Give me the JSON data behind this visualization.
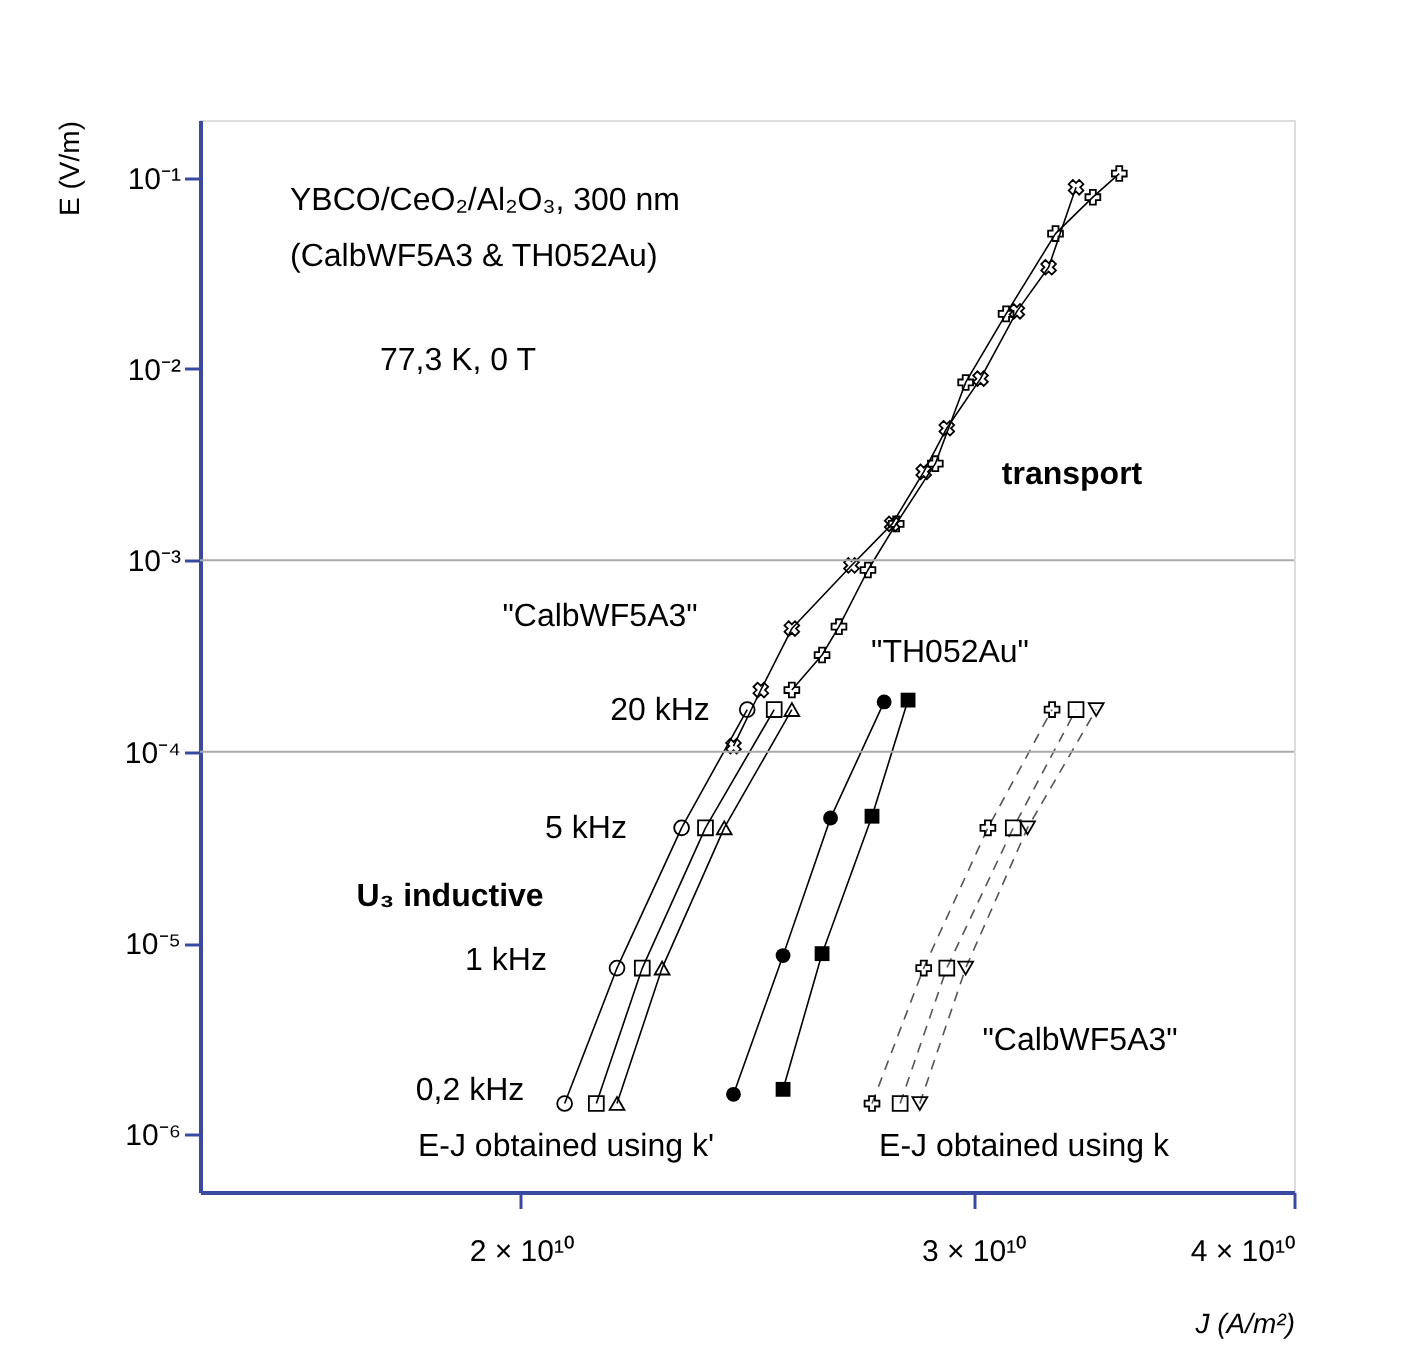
{
  "chart_data": {
    "type": "line",
    "xlabel": "J (A/m²)",
    "ylabel": "E (V/m)",
    "log": "xy",
    "grid": false,
    "xlim": [
      15000000000.0,
      40000000000.0
    ],
    "ylim": [
      5e-07,
      0.2
    ],
    "xticks": [
      {
        "value": 20000000000.0,
        "label": "2 × 10¹⁰"
      },
      {
        "value": 30000000000.0,
        "label": "3 × 10¹⁰"
      },
      {
        "value": 40000000000.0,
        "label": "4 × 10¹⁰"
      }
    ],
    "yticks": [
      {
        "value": 1e-06,
        "label": "10⁻⁶"
      },
      {
        "value": 1e-05,
        "label": "10⁻⁵"
      },
      {
        "value": 0.0001,
        "label": "10⁻⁴"
      },
      {
        "value": 0.001,
        "label": "10⁻³"
      },
      {
        "value": 0.01,
        "label": "10⁻²"
      },
      {
        "value": 0.1,
        "label": "10⁻¹"
      }
    ],
    "ref_lines": [
      {
        "axis": "y",
        "value": 0.001,
        "color": "#aaaaaa"
      },
      {
        "axis": "y",
        "value": 0.0001,
        "color": "#aaaaaa"
      }
    ],
    "series": [
      {
        "type": "line",
        "marker": "circle",
        "line_style": "solid",
        "color": "#000000",
        "x": [
          20800000000.0,
          21800000000.0,
          23100000000.0,
          24500000000.0
        ],
        "values": [
          1.45e-06,
          7.4e-06,
          4e-05,
          0.000166
        ]
      },
      {
        "type": "line",
        "marker": "square",
        "line_style": "solid",
        "color": "#000000",
        "x": [
          21400000000.0,
          22300000000.0,
          23600000000.0,
          25100000000.0
        ],
        "values": [
          1.45e-06,
          7.4e-06,
          4e-05,
          0.000166
        ]
      },
      {
        "type": "line",
        "marker": "triangle",
        "line_style": "solid",
        "color": "#000000",
        "x": [
          21800000000.0,
          22700000000.0,
          24000000000.0,
          25500000000.0
        ],
        "values": [
          1.45e-06,
          7.4e-06,
          4e-05,
          0.000166
        ]
      },
      {
        "marker": "circle-filled",
        "line_style": "solid",
        "color": "#000000",
        "x": [
          24200000000.0,
          25300000000.0,
          26400000000.0,
          27700000000.0
        ],
        "values": [
          1.62e-06,
          8.6e-06,
          4.5e-05,
          0.000182
        ]
      },
      {
        "marker": "square-filled",
        "line_style": "solid",
        "color": "#000000",
        "x": [
          25300000000.0,
          26200000000.0,
          27400000000.0,
          28300000000.0
        ],
        "values": [
          1.72e-06,
          8.8e-06,
          4.6e-05,
          0.000186
        ]
      },
      {
        "type": "line",
        "marker": "cross",
        "line_style": "dashed",
        "color": "#555555",
        "x": [
          27400000000.0,
          28700000000.0,
          30400000000.0,
          32200000000.0
        ],
        "values": [
          1.45e-06,
          7.4e-06,
          4e-05,
          0.000166
        ]
      },
      {
        "type": "line",
        "marker": "square",
        "line_style": "dashed",
        "color": "#555555",
        "x": [
          28100000000.0,
          29300000000.0,
          31100000000.0,
          32900000000.0
        ],
        "values": [
          1.45e-06,
          7.4e-06,
          4e-05,
          0.000166
        ]
      },
      {
        "type": "line",
        "marker": "triangle-down",
        "line_style": "dashed",
        "color": "#555555",
        "x": [
          28600000000.0,
          29800000000.0,
          31500000000.0,
          33500000000.0
        ],
        "values": [
          1.45e-06,
          7.4e-06,
          4e-05,
          0.000166
        ]
      },
      {
        "type": "line",
        "marker": "cross",
        "line_style": "solid",
        "color": "#000000",
        "x": [
          25500000000.0,
          26200000000.0,
          26600000000.0,
          27300000000.0,
          28000000000.0,
          29000000000.0,
          29800000000.0,
          30900000000.0,
          32300000000.0,
          33400000000.0,
          34200000000.0
        ],
        "values": [
          0.00021,
          0.00032,
          0.00045,
          0.00089,
          0.00155,
          0.0032,
          0.0085,
          0.0194,
          0.051,
          0.079,
          0.105
        ]
      },
      {
        "type": "line",
        "marker": "x",
        "line_style": "solid",
        "color": "#000000",
        "x": [
          24200000000.0,
          24800000000.0,
          25500000000.0,
          26900000000.0,
          27900000000.0,
          28700000000.0,
          29300000000.0,
          30200000000.0,
          31200000000.0,
          32100000000.0,
          32900000000.0
        ],
        "values": [
          0.000107,
          0.00021,
          0.00044,
          0.00094,
          0.00155,
          0.0029,
          0.0049,
          0.0089,
          0.02,
          0.034,
          0.089
        ]
      }
    ],
    "annotations": [
      "YBCO/CeO₂/Al₂O₃, 300 nm",
      "(CalbWF5A3 & TH052Au)",
      "77,3 K, 0 T",
      "transport",
      "\"CalbWF5A3\"",
      "\"TH052Au\"",
      "20 kHz",
      "5 kHz",
      "U₃ inductive",
      "1 kHz",
      "0,2 kHz",
      "E-J obtained using k'",
      "E-J obtained using k",
      "\"CalbWF5A3\""
    ]
  }
}
